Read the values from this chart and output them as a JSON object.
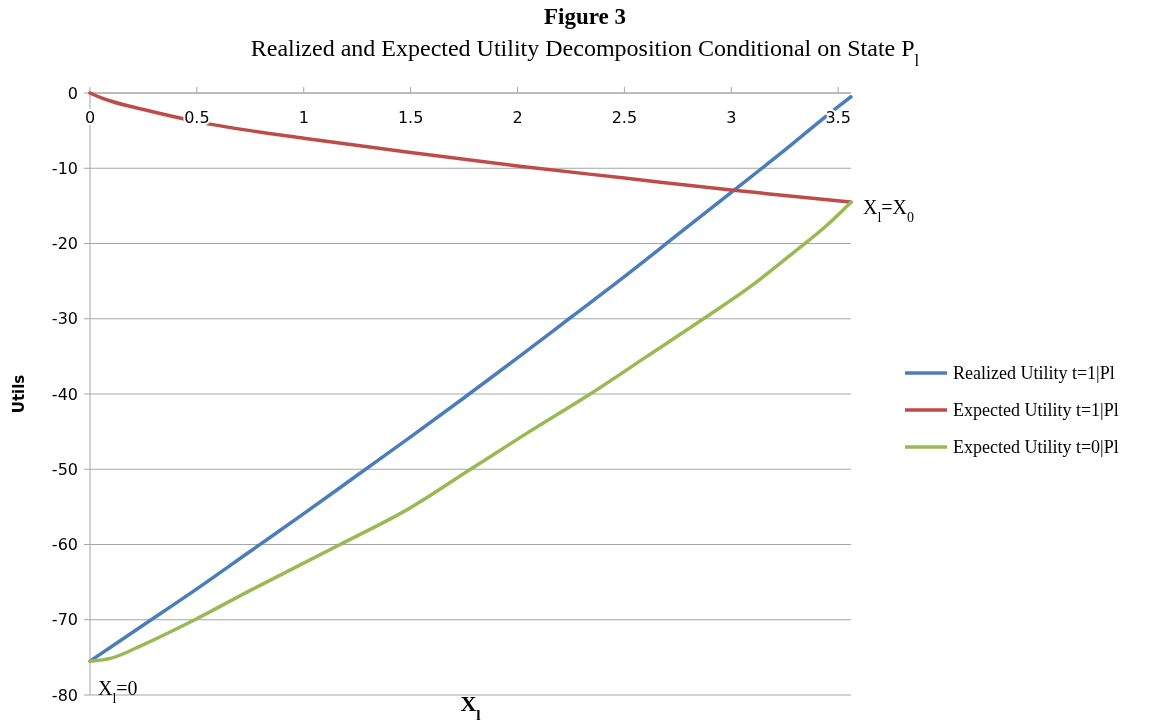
{
  "chart_data": {
    "type": "line",
    "title": "Figure 3",
    "subtitle": "Realized and Expected Utility Decomposition Conditional on State P$_{l}$",
    "xlabel": "X$_{l}$",
    "ylabel": "Utils",
    "xlim": [
      0,
      3.56
    ],
    "xticks": [
      0,
      0.5,
      1,
      1.5,
      2,
      2.5,
      3,
      3.5
    ],
    "ylim": [
      -80,
      0
    ],
    "yticks": [
      -80,
      -70,
      -60,
      -50,
      -40,
      -30,
      -20,
      -10,
      0
    ],
    "grid": "y",
    "legend": "right",
    "series": [
      {
        "name": "Realized Utility t=1|Pl",
        "color": "#4a7ebb",
        "x": [
          0,
          0.25,
          0.5,
          0.75,
          1,
          1.25,
          1.5,
          1.75,
          2,
          2.25,
          2.5,
          2.75,
          3,
          3.25,
          3.5,
          3.56
        ],
        "values": [
          -75.5,
          -70.7,
          -65.9,
          -60.9,
          -55.9,
          -50.8,
          -45.7,
          -40.5,
          -35.2,
          -29.8,
          -24.4,
          -18.8,
          -13.2,
          -7.6,
          -1.8,
          -0.5
        ]
      },
      {
        "name": "Expected Utility t=1|Pl",
        "color": "#be4b48",
        "x": [
          0,
          0.05,
          0.1,
          0.25,
          0.5,
          0.75,
          1,
          1.5,
          2,
          2.5,
          3,
          3.56
        ],
        "values": [
          0,
          -0.6,
          -1.1,
          -2.2,
          -3.8,
          -5,
          -6,
          -7.9,
          -9.7,
          -11.3,
          -12.9,
          -14.5
        ]
      },
      {
        "name": "Expected Utility t=0|Pl",
        "color": "#98b954",
        "x": [
          0,
          0.1,
          0.25,
          0.49,
          0.75,
          1.17,
          1.5,
          1.78,
          2.05,
          2.34,
          2.6,
          2.87,
          3.1,
          3.3,
          3.45,
          3.56
        ],
        "values": [
          -75.5,
          -75.1,
          -73.3,
          -70,
          -66.1,
          -60,
          -55.1,
          -50,
          -45.1,
          -40,
          -35.1,
          -30,
          -25.5,
          -21,
          -17.5,
          -14.5
        ]
      }
    ],
    "annotations": [
      {
        "text": "X$_{l}$=X$_{0}$",
        "x": 3.56,
        "y": -14.5
      },
      {
        "text": "X$_{l}$=0",
        "x": 0,
        "y": -75.5
      }
    ]
  }
}
